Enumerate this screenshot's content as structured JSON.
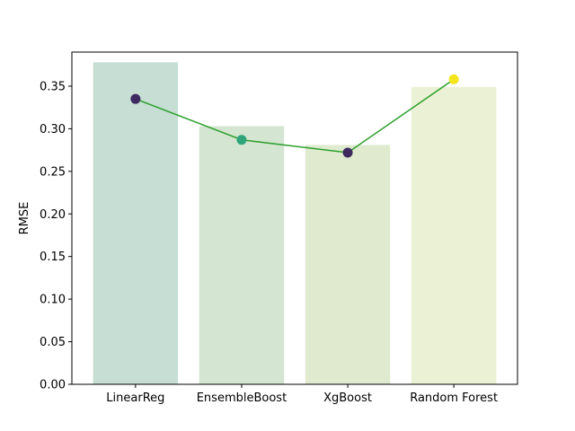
{
  "chart_data": {
    "type": "bar",
    "categories": [
      "LinearReg",
      "EnsembleBoost",
      "XgBoost",
      "Random Forest"
    ],
    "ylabel": "RMSE",
    "ylim": [
      0,
      0.39
    ],
    "yticks": [
      0.0,
      0.05,
      0.1,
      0.15,
      0.2,
      0.25,
      0.3,
      0.35
    ],
    "ytick_labels": [
      "0.00",
      "0.05",
      "0.10",
      "0.15",
      "0.20",
      "0.25",
      "0.30",
      "0.35"
    ],
    "grid": false,
    "series": [
      {
        "kind": "bar",
        "values": [
          0.378,
          0.303,
          0.281,
          0.349
        ],
        "colors": [
          "#c6ded3",
          "#d4e5d1",
          "#dfeacf",
          "#eaf1d4"
        ]
      },
      {
        "kind": "line",
        "values": [
          0.335,
          0.287,
          0.272,
          0.358
        ],
        "line_color": "#2ca02c",
        "marker_colors": [
          "#3e2a5e",
          "#2fa57c",
          "#3e2a5e",
          "#f4e51e"
        ]
      }
    ]
  }
}
